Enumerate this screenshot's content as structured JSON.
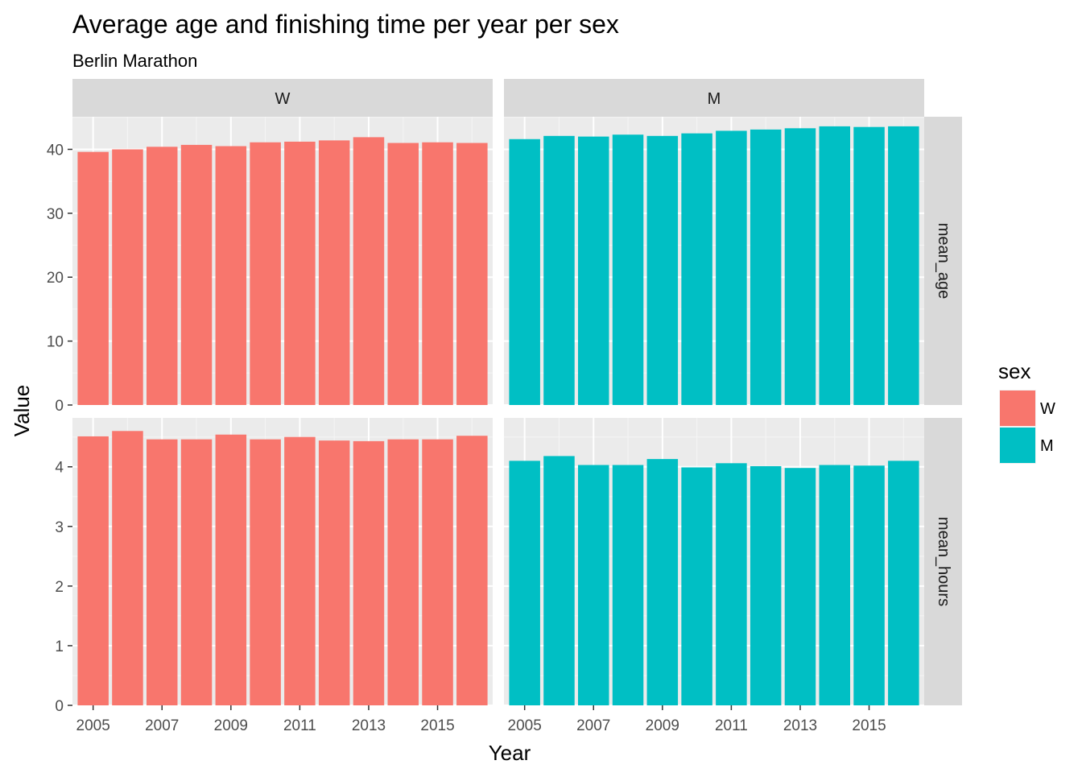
{
  "chart_data": {
    "type": "bar",
    "title": "Average age and finishing time per year per sex",
    "subtitle": "Berlin Marathon",
    "xlabel": "Year",
    "ylabel": "Value",
    "x": [
      2005,
      2006,
      2007,
      2008,
      2009,
      2010,
      2011,
      2012,
      2013,
      2014,
      2015,
      2016
    ],
    "x_ticks": [
      "2005",
      "2007",
      "2009",
      "2011",
      "2013",
      "2015"
    ],
    "grid": true,
    "legend": {
      "title": "sex",
      "position": "right",
      "entries": [
        {
          "label": "W",
          "color": "#F8766D"
        },
        {
          "label": "M",
          "color": "#00BFC4"
        }
      ]
    },
    "columns": [
      "W",
      "M"
    ],
    "rows": [
      {
        "label": "mean_age",
        "ylim": [
          0,
          45.1
        ],
        "y_ticks": [
          "0",
          "10",
          "20",
          "30",
          "40"
        ]
      },
      {
        "label": "mean_hours",
        "ylim": [
          0,
          4.82
        ],
        "y_ticks": [
          "0",
          "1",
          "2",
          "3",
          "4"
        ]
      }
    ],
    "panels": [
      {
        "sex": "W",
        "variable": "mean_age",
        "color": "#F8766D",
        "values": [
          39.6,
          40.0,
          40.4,
          40.7,
          40.5,
          41.1,
          41.2,
          41.4,
          41.9,
          41.0,
          41.1,
          41.0
        ]
      },
      {
        "sex": "M",
        "variable": "mean_age",
        "color": "#00BFC4",
        "values": [
          41.6,
          42.1,
          42.0,
          42.3,
          42.1,
          42.5,
          42.9,
          43.1,
          43.3,
          43.6,
          43.5,
          43.6
        ]
      },
      {
        "sex": "W",
        "variable": "mean_hours",
        "color": "#F8766D",
        "values": [
          4.51,
          4.6,
          4.46,
          4.46,
          4.54,
          4.46,
          4.5,
          4.44,
          4.43,
          4.46,
          4.46,
          4.52
        ]
      },
      {
        "sex": "M",
        "variable": "mean_hours",
        "color": "#00BFC4",
        "values": [
          4.1,
          4.18,
          4.03,
          4.03,
          4.13,
          3.99,
          4.06,
          4.01,
          3.98,
          4.03,
          4.02,
          4.1
        ]
      }
    ]
  }
}
